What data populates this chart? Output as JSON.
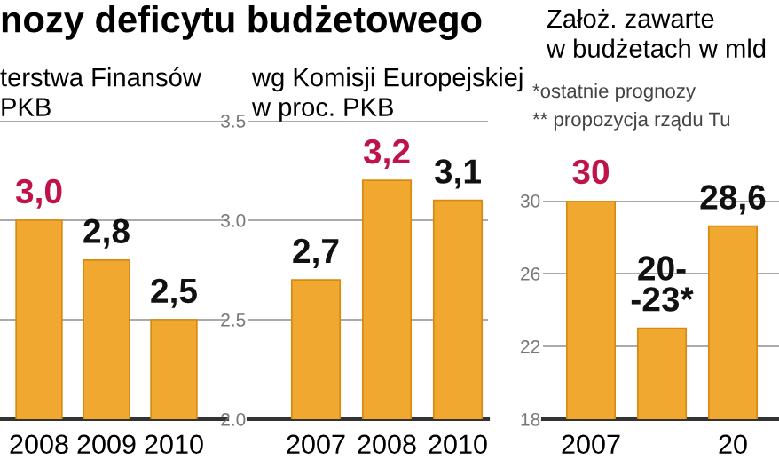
{
  "chart_data": [
    {
      "type": "bar",
      "title": "nozy deficytu budżetowego",
      "subtitle": "terstwa Finansów\nPKB",
      "categories": [
        "2008",
        "2009",
        "2010"
      ],
      "values": [
        3.0,
        2.8,
        2.5
      ],
      "color": "#f0a830",
      "value_labels": [
        "3,0",
        "2,8",
        "2,5"
      ],
      "ylim": [
        2.0,
        3.5
      ],
      "yticks": [
        2.0,
        2.5,
        3.0,
        3.5
      ],
      "grid": "y",
      "tick_labels": "x"
    },
    {
      "type": "bar",
      "subtitle": "wg Komisji Europejskiej\nw proc. PKB",
      "categories": [
        "2007",
        "2008",
        "2010"
      ],
      "values": [
        2.7,
        3.2,
        3.1
      ],
      "color": "#f0a830",
      "value_labels": [
        "2,7",
        "3,2",
        "3,1"
      ],
      "ylim": [
        2.0,
        3.5
      ],
      "yticks": [
        {
          "value": 2.0,
          "label": "2.0"
        },
        {
          "value": 2.5,
          "label": "2.5"
        },
        {
          "value": 3.0,
          "label": "3.0"
        },
        {
          "value": 3.5,
          "label": "3.5"
        }
      ],
      "grid": "y"
    },
    {
      "type": "bar",
      "subtitle": "Założ. zawarte\nw budżetach w mld",
      "annotations": [
        "*ostatnie prognozy",
        "** propozycja rządu Tu"
      ],
      "categories": [
        "2007",
        null,
        "20"
      ],
      "values": [
        30,
        23,
        28.6
      ],
      "color": "#f0a830",
      "value_labels": [
        "30",
        "20-\n-23*",
        "28,6"
      ],
      "ylim": [
        18,
        30
      ],
      "yticks": [
        18,
        22,
        26,
        30
      ],
      "grid": "y"
    }
  ]
}
